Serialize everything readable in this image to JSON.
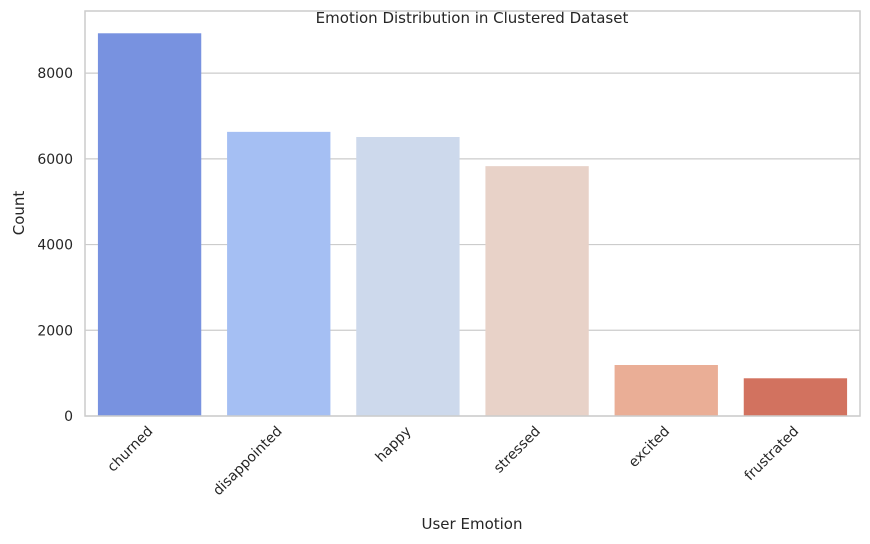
{
  "chart_data": {
    "type": "bar",
    "title": "Emotion Distribution in Clustered Dataset",
    "xlabel": "User Emotion",
    "ylabel": "Count",
    "categories": [
      "churned",
      "disappointed",
      "happy",
      "stressed",
      "excited",
      "frustrated"
    ],
    "values": [
      8930,
      6630,
      6510,
      5830,
      1190,
      880
    ],
    "colors": [
      "#7892e0",
      "#a5bff3",
      "#cdd9ec",
      "#e8d2c8",
      "#eaae96",
      "#d2725f"
    ],
    "ylim": [
      0,
      9450
    ],
    "yticks": [
      0,
      2000,
      4000,
      6000,
      8000
    ],
    "grid": "horizontal",
    "tick_rotation_deg": -45
  }
}
